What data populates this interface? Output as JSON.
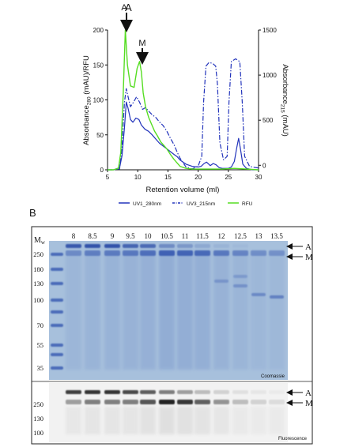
{
  "panel_a": {
    "label": "A",
    "arrow_a": "A",
    "arrow_m": "M",
    "legend": [
      {
        "name": "UV1_280nm",
        "color": "#2233bb",
        "dash": ""
      },
      {
        "name": "UV3_215nm",
        "color": "#2233bb",
        "dash": "6,2,1.5,2"
      },
      {
        "name": "RFU",
        "color": "#55dd22",
        "dash": ""
      }
    ]
  },
  "chart_data": {
    "type": "line",
    "xlabel": "Retention volume (ml)",
    "ylabel_left": "Absorbance280 (mAU)/RFU",
    "ylabel_right": "Absorbance215 (mAU)",
    "xlim": [
      5,
      30
    ],
    "ylim_left": [
      0,
      200
    ],
    "ylim_right": [
      -50,
      1500
    ],
    "x_ticks": [
      5,
      10,
      15,
      20,
      25,
      30
    ],
    "y_ticks_left": [
      0,
      50,
      100,
      150,
      200
    ],
    "y_ticks_right": [
      0,
      500,
      1000,
      1500
    ],
    "series": [
      {
        "name": "UV1_280nm",
        "axis": "left",
        "x": [
          5,
          6,
          7,
          7.4,
          7.8,
          8.1,
          8.4,
          8.8,
          9.2,
          9.7,
          10.2,
          10.6,
          11.2,
          11.8,
          12.4,
          13,
          13.6,
          14.2,
          14.8,
          15.4,
          16,
          16.5,
          17,
          18,
          19,
          20,
          20.5,
          21,
          21.4,
          22,
          22.5,
          23,
          23.5,
          24,
          25,
          25.5,
          26,
          26.4,
          26.7,
          27,
          27.4,
          28,
          29,
          30
        ],
        "y": [
          0,
          0,
          3,
          20,
          60,
          97,
          88,
          72,
          68,
          74,
          72,
          64,
          58,
          55,
          50,
          44,
          38,
          34,
          30,
          26,
          22,
          19,
          14,
          8,
          5,
          4,
          5,
          9,
          11,
          6,
          9,
          7,
          3,
          2,
          2,
          4,
          12,
          32,
          45,
          30,
          8,
          2,
          0,
          0
        ]
      },
      {
        "name": "UV3_215nm",
        "axis": "right",
        "x": [
          5,
          6,
          7,
          7.4,
          7.8,
          8.1,
          8.4,
          8.8,
          9.3,
          9.8,
          10.3,
          10.8,
          11.3,
          11.8,
          12.4,
          13,
          13.6,
          14.2,
          14.8,
          15.4,
          16,
          16.5,
          17,
          18,
          19,
          20,
          20.6,
          20.9,
          21.3,
          21.8,
          22.4,
          22.9,
          23.2,
          23.6,
          24.2,
          24.8,
          25.1,
          25.5,
          26.2,
          26.9,
          27.3,
          27.7,
          28.5,
          29,
          30
        ],
        "y": [
          -50,
          -50,
          -40,
          200,
          700,
          850,
          760,
          650,
          700,
          760,
          700,
          620,
          640,
          600,
          560,
          530,
          480,
          440,
          380,
          300,
          230,
          150,
          80,
          -20,
          -40,
          -10,
          100,
          700,
          1100,
          1140,
          1130,
          1100,
          900,
          250,
          60,
          100,
          700,
          1150,
          1180,
          1150,
          700,
          100,
          -10,
          -20,
          -30
        ]
      },
      {
        "name": "RFU",
        "axis": "left",
        "x": [
          5,
          6,
          6.8,
          7.2,
          7.6,
          7.95,
          8.3,
          8.8,
          9.4,
          9.9,
          10.3,
          10.6,
          10.9,
          11.3,
          11.8,
          12.3,
          12.8,
          13.3,
          13.8,
          14.3,
          14.8,
          15.4,
          16,
          16.5,
          17,
          18,
          19,
          20,
          22,
          24,
          26,
          28,
          30
        ],
        "y": [
          0,
          0,
          2,
          25,
          110,
          200,
          150,
          120,
          118,
          145,
          155,
          140,
          110,
          90,
          75,
          65,
          55,
          48,
          40,
          35,
          30,
          22,
          15,
          10,
          5,
          2,
          1,
          1,
          1,
          1,
          2,
          1,
          0
        ]
      }
    ]
  },
  "panel_b": {
    "label": "B",
    "mw_label": "M",
    "mw_sub": "w",
    "lanes": [
      "8",
      "8.5",
      "9",
      "9.5",
      "10",
      "10.5",
      "11",
      "11.5",
      "12",
      "12.5",
      "13",
      "13.5"
    ],
    "mw_coomassie": [
      "250",
      "180",
      "130",
      "100",
      "70",
      "55",
      "35"
    ],
    "mw_fluor": [
      "250",
      "130",
      "100"
    ],
    "arrow_a": "A",
    "arrow_m": "M",
    "coomassie_label": "Coomassie",
    "fluor_label": "Fluorescence"
  },
  "colors": {
    "uv1": "#2233bb",
    "uv3": "#2233bb",
    "rfu": "#55dd22",
    "gel_bg": "#aec6de",
    "gel_band": "#3e62b8",
    "fluor_bg": "#f2f2f2"
  }
}
